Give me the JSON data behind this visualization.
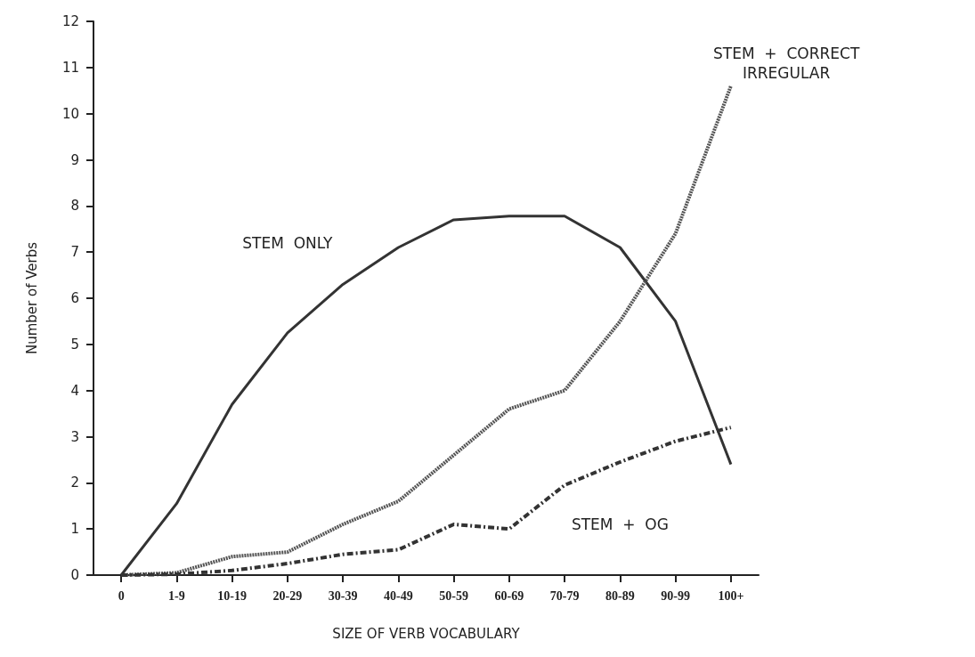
{
  "chart_data": {
    "type": "line",
    "xlabel": "SIZE OF VERB VOCABULARY",
    "ylabel": "Number of Verbs",
    "categories": [
      "0",
      "1-9",
      "10-19",
      "20-29",
      "30-39",
      "40-49",
      "50-59",
      "60-69",
      "70-79",
      "80-89",
      "90-99",
      "100+"
    ],
    "series": [
      {
        "name": "STEM  ONLY",
        "color": "#333333",
        "line_style": "solid",
        "values": [
          0,
          1.55,
          3.7,
          5.25,
          6.3,
          7.1,
          7.7,
          7.78,
          7.78,
          7.1,
          5.5,
          2.4
        ]
      },
      {
        "name": "STEM  +  CORRECT\nIRREGULAR",
        "color": "#555555",
        "line_style": "dotted",
        "values": [
          0,
          0.05,
          0.4,
          0.5,
          1.1,
          1.6,
          2.6,
          3.6,
          4.0,
          5.5,
          7.4,
          10.6
        ]
      },
      {
        "name": "STEM  +  OG",
        "color": "#333333",
        "line_style": "dashed",
        "values": [
          0,
          0.02,
          0.1,
          0.25,
          0.45,
          0.55,
          1.1,
          1.0,
          1.95,
          2.45,
          2.9,
          3.2
        ]
      }
    ],
    "ylim": [
      0,
      12
    ],
    "yticks": [
      0,
      1,
      2,
      3,
      4,
      5,
      6,
      7,
      8,
      9,
      10,
      11,
      12
    ],
    "grid": false,
    "legend": false,
    "marker": "none"
  }
}
